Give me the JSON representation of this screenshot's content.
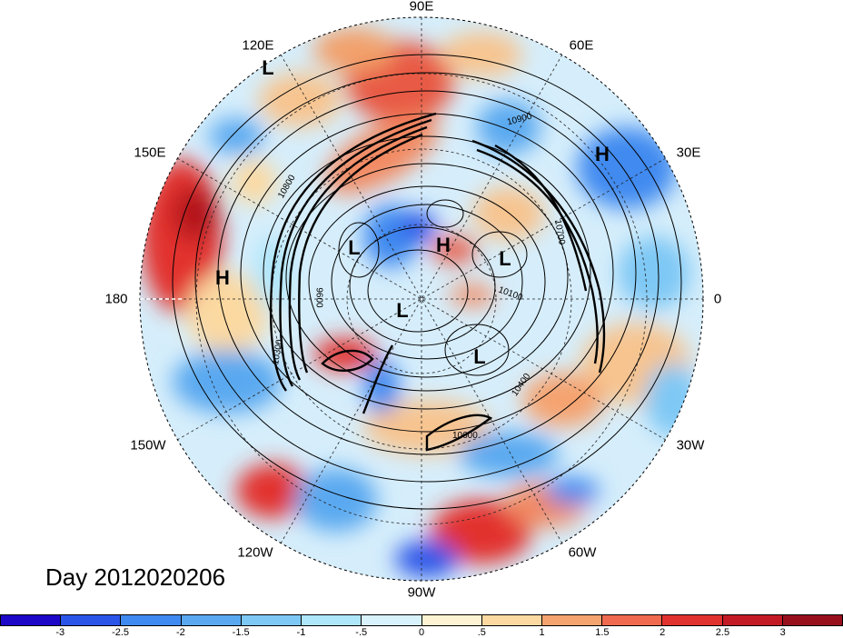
{
  "title": "Day 2012020206",
  "longitude_labels": [
    "90E",
    "60E",
    "30E",
    "0",
    "30W",
    "60W",
    "90W",
    "120W",
    "150W",
    "180",
    "150E",
    "120E"
  ],
  "pressure_systems": [
    "H",
    "H",
    "H",
    "L",
    "L",
    "L",
    "L",
    "L"
  ],
  "contour_labels": [
    "10900",
    "10800",
    "10700",
    "9600",
    "10100",
    "10400",
    "10600",
    "10300"
  ],
  "colorbar": {
    "ticks": [
      "-3",
      "-2.5",
      "-2",
      "-1.5",
      "-1",
      "-.5",
      "0",
      ".5",
      "1",
      "1.5",
      "2",
      "2.5",
      "3"
    ],
    "colors": [
      "#1d08c8",
      "#2a55e8",
      "#3f8af0",
      "#5aa9f0",
      "#7ec8f5",
      "#aee6fa",
      "#d9f3fd",
      "#fdf4d3",
      "#fbd9a1",
      "#f5a36f",
      "#ef6a4e",
      "#e1322f",
      "#c41a25",
      "#98101c"
    ]
  }
}
